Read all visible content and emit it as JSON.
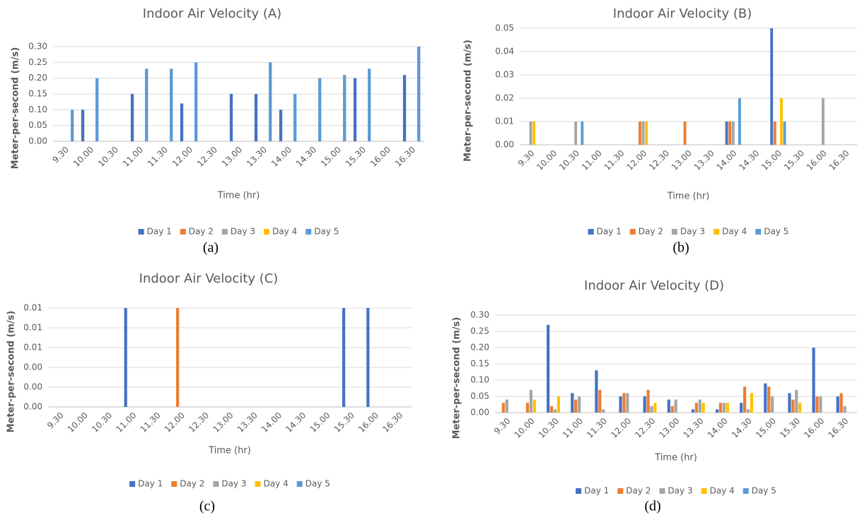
{
  "chart_data": [
    {
      "type": "bar",
      "title": "Indoor Air Velocity (A)",
      "xlabel": "Time (hr)",
      "ylabel": "Meter-per-second (m/s)",
      "caption": "(a)",
      "categories": [
        "9.30",
        "10.00",
        "10.30",
        "11.00",
        "11.30",
        "12.00",
        "12.30",
        "13.00",
        "13.30",
        "14.00",
        "14.30",
        "15.00",
        "15.30",
        "16.00",
        "16.30"
      ],
      "series": [
        {
          "name": "Day 1",
          "color": "#4472c4",
          "values": [
            0,
            0.1,
            0,
            0.15,
            0,
            0.12,
            0,
            0.15,
            0.15,
            0.1,
            0,
            0,
            0.2,
            0,
            0.21
          ]
        },
        {
          "name": "Day 2",
          "color": "#ed7d31",
          "values": [
            0,
            0,
            0,
            0,
            0,
            0,
            0,
            0,
            0,
            0,
            0,
            0,
            0,
            0,
            0
          ]
        },
        {
          "name": "Day 3",
          "color": "#a5a5a5",
          "values": [
            0,
            0,
            0,
            0,
            0,
            0,
            0,
            0,
            0,
            0,
            0,
            0,
            0,
            0,
            0
          ]
        },
        {
          "name": "Day 4",
          "color": "#ffc000",
          "values": [
            0,
            0,
            0,
            0,
            0,
            0,
            0,
            0,
            0,
            0,
            0,
            0,
            0,
            0,
            0
          ]
        },
        {
          "name": "Day 5",
          "color": "#5b9bd5",
          "values": [
            0.1,
            0.2,
            0,
            0.23,
            0.23,
            0.25,
            0,
            0,
            0.25,
            0.15,
            0.2,
            0.21,
            0.23,
            0,
            0.3
          ]
        }
      ],
      "ylim": [
        0,
        0.3
      ],
      "yticks": [
        {
          "value": 0,
          "label": "0.00"
        },
        {
          "value": 0.05,
          "label": "0.05"
        },
        {
          "value": 0.1,
          "label": "0.10"
        },
        {
          "value": 0.15,
          "label": "0.15"
        },
        {
          "value": 0.2,
          "label": "0.20"
        },
        {
          "value": 0.25,
          "label": "0.25"
        },
        {
          "value": 0.3,
          "label": "0.30"
        }
      ],
      "grid": true,
      "legend": "bottom"
    },
    {
      "type": "bar",
      "title": "Indoor Air Velocity (B)",
      "xlabel": "Time (hr)",
      "ylabel": "Meter-per-second  (m/s)",
      "caption": "(b)",
      "categories": [
        "9.30",
        "10.00",
        "10.30",
        "11.00",
        "11.30",
        "12.00",
        "12.30",
        "13.00",
        "13.30",
        "14.00",
        "14.30",
        "15.00",
        "15.30",
        "16.00",
        "16.30"
      ],
      "series": [
        {
          "name": "Day 1",
          "color": "#4472c4",
          "values": [
            0,
            0,
            0,
            0,
            0,
            0,
            0,
            0,
            0,
            0.01,
            0,
            0.05,
            0,
            0,
            0
          ]
        },
        {
          "name": "Day 2",
          "color": "#ed7d31",
          "values": [
            0,
            0,
            0,
            0,
            0,
            0.01,
            0,
            0.01,
            0,
            0.01,
            0,
            0.01,
            0,
            0,
            0
          ]
        },
        {
          "name": "Day 3",
          "color": "#a5a5a5",
          "values": [
            0.01,
            0,
            0.01,
            0,
            0,
            0.01,
            0,
            0,
            0,
            0.01,
            0,
            0,
            0,
            0.02,
            0
          ]
        },
        {
          "name": "Day 4",
          "color": "#ffc000",
          "values": [
            0.01,
            0,
            0,
            0,
            0,
            0.01,
            0,
            0,
            0,
            0,
            0,
            0.02,
            0,
            0,
            0
          ]
        },
        {
          "name": "Day 5",
          "color": "#5b9bd5",
          "values": [
            0,
            0,
            0.01,
            0,
            0,
            0,
            0,
            0,
            0,
            0.02,
            0,
            0.01,
            0,
            0,
            0
          ]
        }
      ],
      "ylim": [
        0,
        0.05
      ],
      "yticks": [
        {
          "value": 0,
          "label": "0.00"
        },
        {
          "value": 0.01,
          "label": "0.01"
        },
        {
          "value": 0.02,
          "label": "0.02"
        },
        {
          "value": 0.03,
          "label": "0.03"
        },
        {
          "value": 0.04,
          "label": "0.04"
        },
        {
          "value": 0.05,
          "label": "0.05"
        }
      ],
      "grid": true,
      "legend": "bottom"
    },
    {
      "type": "bar",
      "title": "Indoor Air Velocity (C)",
      "xlabel": "Time (hr)",
      "ylabel": "Meter-per-second (m/s)",
      "caption": "(c)",
      "categories": [
        "9.30",
        "10.00",
        "10.30",
        "11.00",
        "11.30",
        "12.00",
        "12.30",
        "13.00",
        "13.30",
        "14.00",
        "14.30",
        "15.00",
        "15.30",
        "16.00",
        "16.30"
      ],
      "series": [
        {
          "name": "Day 1",
          "color": "#4472c4",
          "values": [
            0,
            0,
            0,
            0.01,
            0,
            0,
            0,
            0,
            0,
            0,
            0,
            0,
            0.01,
            0.01,
            0
          ]
        },
        {
          "name": "Day 2",
          "color": "#ed7d31",
          "values": [
            0,
            0,
            0,
            0,
            0,
            0.01,
            0,
            0,
            0,
            0,
            0,
            0,
            0,
            0,
            0
          ]
        },
        {
          "name": "Day 3",
          "color": "#a5a5a5",
          "values": [
            0,
            0,
            0,
            0,
            0,
            0,
            0,
            0,
            0,
            0,
            0,
            0,
            0,
            0,
            0
          ]
        },
        {
          "name": "Day 4",
          "color": "#ffc000",
          "values": [
            0,
            0,
            0,
            0,
            0,
            0,
            0,
            0,
            0,
            0,
            0,
            0,
            0,
            0,
            0
          ]
        },
        {
          "name": "Day 5",
          "color": "#5b9bd5",
          "values": [
            0,
            0,
            0,
            0,
            0,
            0,
            0,
            0,
            0,
            0,
            0,
            0,
            0,
            0,
            0
          ]
        }
      ],
      "ylim": [
        0,
        0.01
      ],
      "yticks": [
        {
          "value": 0,
          "label": "0.00"
        },
        {
          "value": 0.002,
          "label": "0.00"
        },
        {
          "value": 0.004,
          "label": "0.00"
        },
        {
          "value": 0.006,
          "label": "0.01"
        },
        {
          "value": 0.008,
          "label": "0.01"
        },
        {
          "value": 0.01,
          "label": "0.01"
        }
      ],
      "grid": true,
      "legend": "bottom"
    },
    {
      "type": "bar",
      "title": "Indoor Air Velocity (D)",
      "xlabel": "Time (hr)",
      "ylabel": "Meter-per-second (m/s)",
      "caption": "(d)",
      "categories": [
        "9.30",
        "10.00",
        "10.30",
        "11.00",
        "11.30",
        "12.00",
        "12.30",
        "13.00",
        "13.30",
        "14.00",
        "14.30",
        "15.00",
        "15.30",
        "16.00",
        "16.30"
      ],
      "series": [
        {
          "name": "Day 1",
          "color": "#4472c4",
          "values": [
            0,
            0,
            0.27,
            0.06,
            0.13,
            0.05,
            0.05,
            0.04,
            0.01,
            0.01,
            0.03,
            0.09,
            0.06,
            0.2,
            0.05
          ]
        },
        {
          "name": "Day 2",
          "color": "#ed7d31",
          "values": [
            0.03,
            0.03,
            0.02,
            0.04,
            0.07,
            0.06,
            0.07,
            0.02,
            0.03,
            0.03,
            0.08,
            0.08,
            0.04,
            0.05,
            0.06
          ]
        },
        {
          "name": "Day 3",
          "color": "#a5a5a5",
          "values": [
            0.04,
            0.07,
            0.01,
            0.05,
            0.01,
            0.06,
            0.02,
            0.04,
            0.04,
            0.03,
            0.01,
            0.05,
            0.07,
            0.05,
            0.02
          ]
        },
        {
          "name": "Day 4",
          "color": "#ffc000",
          "values": [
            0,
            0.04,
            0.05,
            0,
            0,
            0,
            0.03,
            0,
            0.03,
            0.03,
            0.06,
            0,
            0.03,
            0,
            0
          ]
        },
        {
          "name": "Day 5",
          "color": "#5b9bd5",
          "values": [
            0,
            0,
            0,
            0,
            0,
            0,
            0,
            0,
            0,
            0,
            0,
            0,
            0,
            0,
            0
          ]
        }
      ],
      "ylim": [
        0,
        0.3
      ],
      "yticks": [
        {
          "value": 0,
          "label": "0.00"
        },
        {
          "value": 0.05,
          "label": "0.05"
        },
        {
          "value": 0.1,
          "label": "0.10"
        },
        {
          "value": 0.15,
          "label": "0.15"
        },
        {
          "value": 0.2,
          "label": "0.20"
        },
        {
          "value": 0.25,
          "label": "0.25"
        },
        {
          "value": 0.3,
          "label": "0.30"
        }
      ],
      "grid": true,
      "legend": "bottom"
    }
  ]
}
